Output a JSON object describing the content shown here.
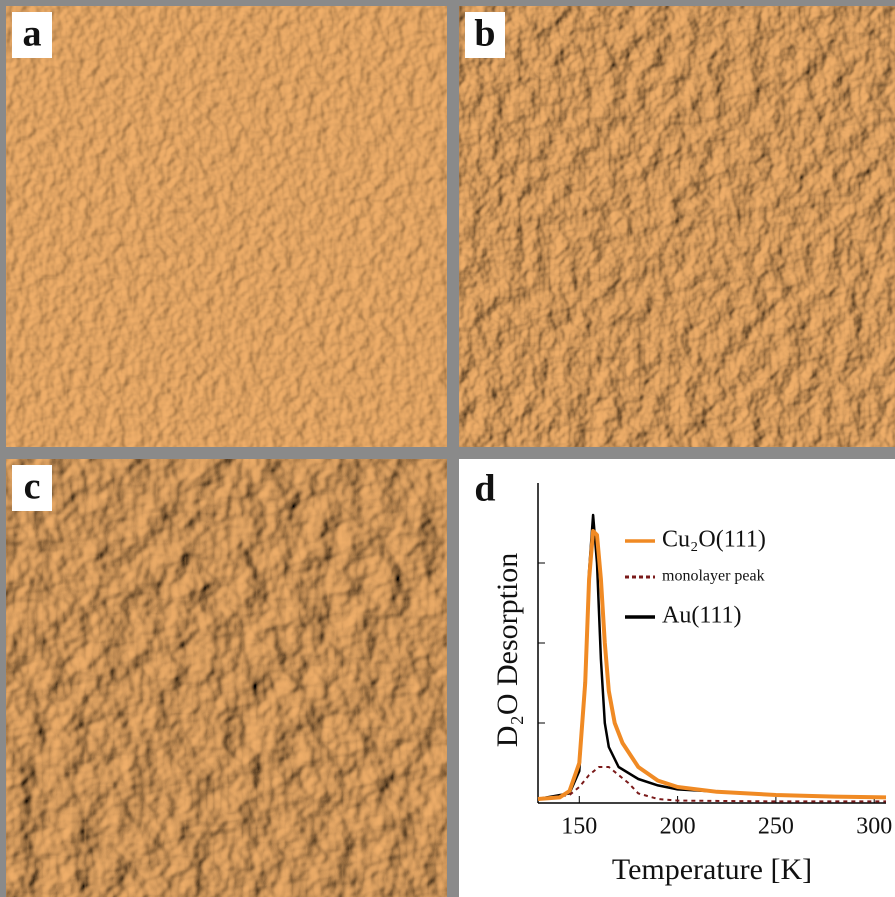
{
  "panels": [
    {
      "label": "a"
    },
    {
      "label": "b"
    },
    {
      "label": "c"
    }
  ],
  "chart_data": {
    "type": "line",
    "panel_label": "d",
    "xlabel": "Temperature [K]",
    "ylabel": "D₂O Desorption",
    "xlim": [
      129,
      306
    ],
    "xticks": [
      150,
      200,
      250,
      300
    ],
    "ylim": [
      0,
      4
    ],
    "yticks": [
      1,
      2,
      3
    ],
    "series": [
      {
        "name": "Cu₂O(111)",
        "color": "#f08a24",
        "style": "solid",
        "x": [
          129,
          140,
          145,
          150,
          153,
          155,
          157,
          159,
          161,
          163,
          165,
          168,
          172,
          180,
          190,
          200,
          220,
          250,
          280,
          306
        ],
        "values": [
          0.05,
          0.07,
          0.15,
          0.5,
          1.5,
          2.8,
          3.4,
          3.35,
          2.8,
          2.0,
          1.4,
          1.0,
          0.75,
          0.45,
          0.28,
          0.2,
          0.14,
          0.1,
          0.08,
          0.07
        ]
      },
      {
        "name": "monolayer peak",
        "color": "#7a1a1a",
        "style": "dotted",
        "x": [
          129,
          145,
          150,
          155,
          160,
          165,
          170,
          175,
          180,
          190,
          200,
          250,
          306
        ],
        "values": [
          0.05,
          0.1,
          0.2,
          0.35,
          0.45,
          0.45,
          0.35,
          0.25,
          0.12,
          0.05,
          0.03,
          0.02,
          0.02
        ]
      },
      {
        "name": "Au(111)",
        "color": "#000000",
        "style": "solid",
        "x": [
          129,
          145,
          150,
          153,
          155,
          157,
          159,
          161,
          163,
          165,
          170,
          180,
          190,
          200,
          250,
          306
        ],
        "values": [
          0.05,
          0.12,
          0.4,
          1.6,
          2.9,
          3.6,
          3.0,
          1.8,
          1.0,
          0.7,
          0.45,
          0.3,
          0.22,
          0.17,
          0.1,
          0.07
        ]
      }
    ]
  }
}
